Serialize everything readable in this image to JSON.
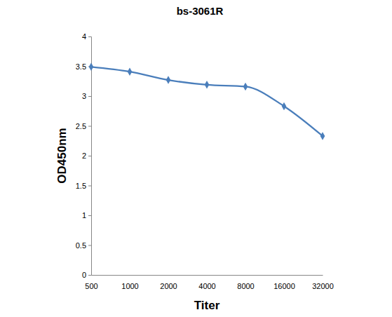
{
  "chart_data": {
    "type": "line",
    "title": "bs-3061R",
    "x_label": "Titer",
    "y_label": "OD450nm",
    "categories": [
      "500",
      "1000",
      "2000",
      "4000",
      "8000",
      "16000",
      "32000"
    ],
    "values": [
      3.49,
      3.41,
      3.27,
      3.19,
      3.16,
      2.83,
      2.33
    ],
    "color": "#4a7ebb",
    "marker": "diamond",
    "line_style": "smooth",
    "ylim": [
      0,
      4
    ],
    "yticks": [
      0,
      0.5,
      1,
      1.5,
      2,
      2.5,
      3,
      3.5,
      4
    ],
    "grid": false
  }
}
